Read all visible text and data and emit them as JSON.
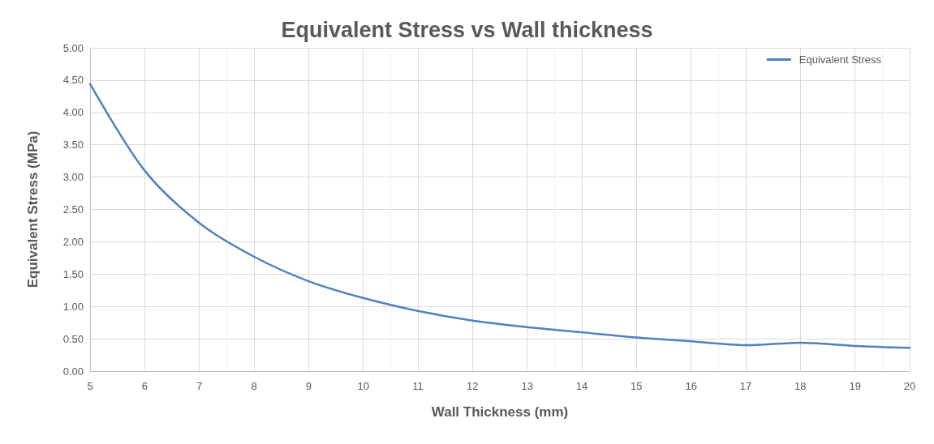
{
  "chart_data": {
    "type": "line",
    "title": "Equivalent Stress vs Wall thickness",
    "xlabel": "Wall Thickness (mm)",
    "ylabel": "Equivalent Stress (MPa)",
    "x": [
      5,
      6,
      7,
      8,
      9,
      10,
      11,
      12,
      13,
      14,
      15,
      16,
      17,
      18,
      19,
      20
    ],
    "series": [
      {
        "name": "Equivalent Stress",
        "color": "#4f81bd",
        "values": [
          4.44,
          3.1,
          2.29,
          1.77,
          1.39,
          1.13,
          0.93,
          0.78,
          0.68,
          0.6,
          0.52,
          0.46,
          0.4,
          0.44,
          0.39,
          0.36
        ]
      }
    ],
    "xlim": [
      5,
      20
    ],
    "xticks": [
      5,
      6,
      7,
      8,
      9,
      10,
      11,
      12,
      13,
      14,
      15,
      16,
      17,
      18,
      19,
      20
    ],
    "ylim": [
      0,
      5
    ],
    "yticks": [
      {
        "value": 0,
        "label": "0.00"
      },
      {
        "value": 0.5,
        "label": "0.50"
      },
      {
        "value": 1,
        "label": "1.00"
      },
      {
        "value": 1.5,
        "label": "1.50"
      },
      {
        "value": 2,
        "label": "2.00"
      },
      {
        "value": 2.5,
        "label": "2.50"
      },
      {
        "value": 3,
        "label": "3.00"
      },
      {
        "value": 3.5,
        "label": "3.50"
      },
      {
        "value": 4,
        "label": "4.00"
      },
      {
        "value": 4.5,
        "label": "4.50"
      },
      {
        "value": 5,
        "label": "5.00"
      }
    ],
    "grid": true,
    "legend": "top right",
    "marker": "none",
    "line_style": "solid"
  }
}
